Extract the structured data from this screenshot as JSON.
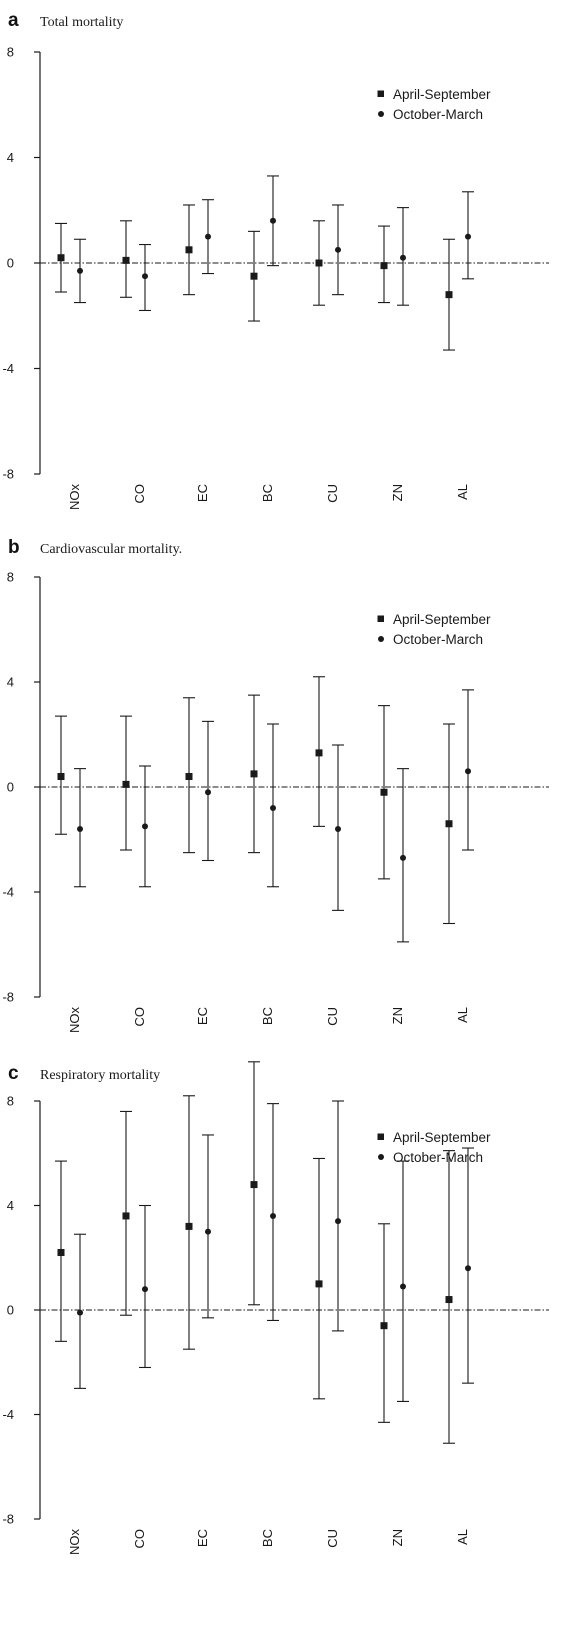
{
  "chart_data": [
    {
      "type": "scatter",
      "panel_letter": "a",
      "title": "Total mortality",
      "xlabel": "",
      "ylabel": "",
      "ylim": [
        -8,
        8
      ],
      "yticks": [
        8,
        4,
        0,
        -4,
        -8
      ],
      "ytick_labels": [
        "8",
        "4",
        "0",
        "-4",
        "-8"
      ],
      "categories": [
        "NOx",
        "CO",
        "EC",
        "BC",
        "CU",
        "ZN",
        "AL"
      ],
      "legend_position": "top-right",
      "reference_line": 0,
      "series": [
        {
          "name": "April-September",
          "marker": "square",
          "values": [
            0.2,
            0.1,
            0.5,
            -0.5,
            0.0,
            -0.1,
            -1.2
          ],
          "lower": [
            -1.1,
            -1.3,
            -1.2,
            -2.2,
            -1.6,
            -1.5,
            -3.3
          ],
          "upper": [
            1.5,
            1.6,
            2.2,
            1.2,
            1.6,
            1.4,
            0.9
          ]
        },
        {
          "name": "October-March",
          "marker": "circle",
          "values": [
            -0.3,
            -0.5,
            1.0,
            1.6,
            0.5,
            0.2,
            1.0
          ],
          "lower": [
            -1.5,
            -1.8,
            -0.4,
            -0.1,
            -1.2,
            -1.6,
            -0.6
          ],
          "upper": [
            0.9,
            0.7,
            2.4,
            3.3,
            2.2,
            2.1,
            2.7
          ]
        }
      ]
    },
    {
      "type": "scatter",
      "panel_letter": "b",
      "title": "Cardiovascular mortality.",
      "xlabel": "",
      "ylabel": "",
      "ylim": [
        -8,
        8
      ],
      "yticks": [
        8,
        4,
        0,
        -4,
        -8
      ],
      "ytick_labels": [
        "8",
        "4",
        "0",
        "-4",
        "-8"
      ],
      "categories": [
        "NOx",
        "CO",
        "EC",
        "BC",
        "CU",
        "ZN",
        "AL"
      ],
      "legend_position": "top-right",
      "reference_line": 0,
      "series": [
        {
          "name": "April-September",
          "marker": "square",
          "values": [
            0.4,
            0.1,
            0.4,
            0.5,
            1.3,
            -0.2,
            -1.4
          ],
          "lower": [
            -1.8,
            -2.4,
            -2.5,
            -2.5,
            -1.5,
            -3.5,
            -5.2
          ],
          "upper": [
            2.7,
            2.7,
            3.4,
            3.5,
            4.2,
            3.1,
            2.4
          ]
        },
        {
          "name": "October-March",
          "marker": "circle",
          "values": [
            -1.6,
            -1.5,
            -0.2,
            -0.8,
            -1.6,
            -2.7,
            0.6
          ],
          "lower": [
            -3.8,
            -3.8,
            -2.8,
            -3.8,
            -4.7,
            -5.9,
            -2.4
          ],
          "upper": [
            0.7,
            0.8,
            2.5,
            2.4,
            1.6,
            0.7,
            3.7
          ]
        }
      ]
    },
    {
      "type": "scatter",
      "panel_letter": "c",
      "title": "Respiratory mortality",
      "xlabel": "",
      "ylabel": "",
      "ylim": [
        -8,
        8
      ],
      "yticks": [
        8,
        4,
        0,
        -4,
        -8
      ],
      "ytick_labels": [
        "8",
        "4",
        "0",
        "-4",
        "-8"
      ],
      "categories": [
        "NOx",
        "CO",
        "EC",
        "BC",
        "CU",
        "ZN",
        "AL"
      ],
      "legend_position": "top-right",
      "reference_line": 0,
      "series": [
        {
          "name": "April-September",
          "marker": "square",
          "values": [
            2.2,
            3.6,
            3.2,
            4.8,
            1.0,
            -0.6,
            0.4
          ],
          "lower": [
            -1.2,
            -0.2,
            -1.5,
            0.2,
            -3.4,
            -4.3,
            -5.1
          ],
          "upper": [
            5.7,
            7.6,
            8.2,
            9.5,
            5.8,
            3.3,
            6.1
          ]
        },
        {
          "name": "October-March",
          "marker": "circle",
          "values": [
            -0.1,
            0.8,
            3.0,
            3.6,
            3.4,
            0.9,
            1.6
          ],
          "lower": [
            -3.0,
            -2.2,
            -0.3,
            -0.4,
            -0.8,
            -3.5,
            -2.8
          ],
          "upper": [
            2.9,
            4.0,
            6.7,
            7.9,
            8.0,
            5.7,
            6.2
          ]
        }
      ]
    }
  ],
  "colors": {
    "ink": "#1a1a1a",
    "background": "#ffffff"
  }
}
